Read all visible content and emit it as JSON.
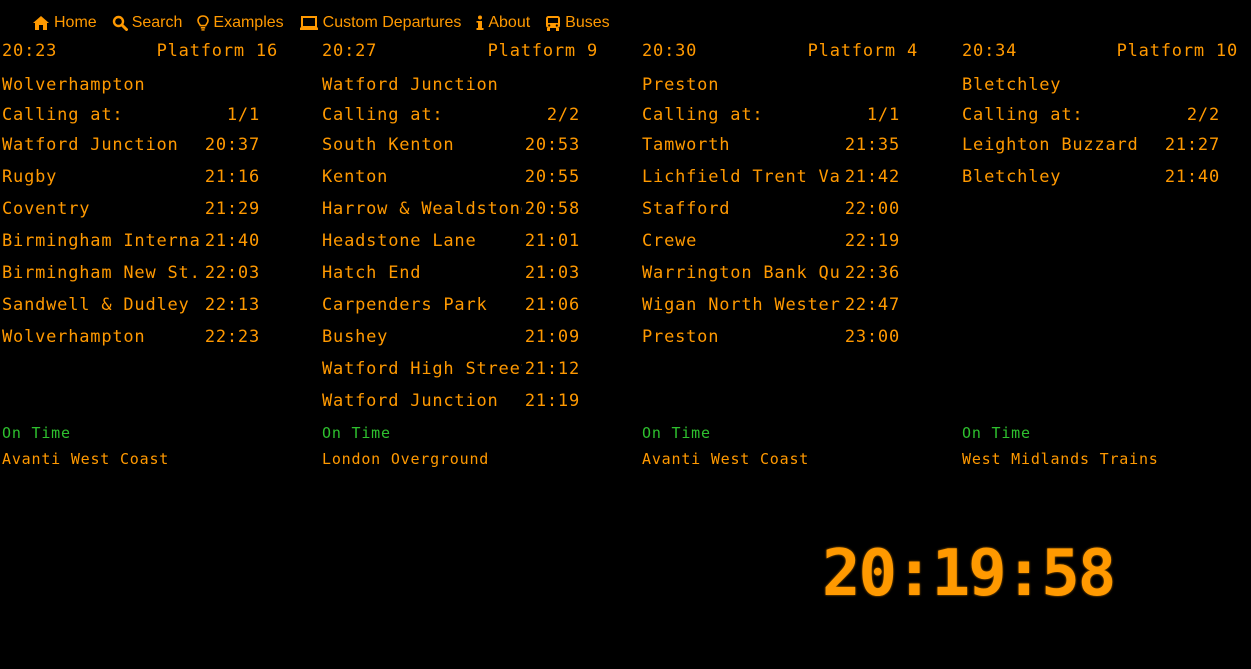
{
  "nav": {
    "items": [
      {
        "label": "Home",
        "icon": "home-icon"
      },
      {
        "label": "Search",
        "icon": "search-icon"
      },
      {
        "label": "Examples",
        "icon": "lightbulb-icon"
      },
      {
        "label": "Custom Departures",
        "icon": "laptop-icon"
      },
      {
        "label": "About",
        "icon": "info-icon"
      },
      {
        "label": "Buses",
        "icon": "bus-icon"
      }
    ]
  },
  "colors": {
    "accent": "#ff9900",
    "on_time": "#2ec02e",
    "background": "#000000"
  },
  "boards": [
    {
      "time": "20:23",
      "platform": "Platform 16",
      "destination": "Wolverhampton",
      "calling_label": "Calling at:",
      "page": "1/1",
      "stops": [
        {
          "name": "Watford Junction",
          "time": "20:37"
        },
        {
          "name": "Rugby",
          "time": "21:16"
        },
        {
          "name": "Coventry",
          "time": "21:29"
        },
        {
          "name": "Birmingham Interna...",
          "time": "21:40"
        },
        {
          "name": "Birmingham New St...",
          "time": "22:03"
        },
        {
          "name": "Sandwell & Dudley",
          "time": "22:13"
        },
        {
          "name": "Wolverhampton",
          "time": "22:23"
        }
      ],
      "status": "On Time",
      "operator": "Avanti West Coast"
    },
    {
      "time": "20:27",
      "platform": "Platform 9",
      "destination": "Watford Junction",
      "calling_label": "Calling at:",
      "page": "2/2",
      "stops": [
        {
          "name": "South Kenton",
          "time": "20:53"
        },
        {
          "name": "Kenton",
          "time": "20:55"
        },
        {
          "name": "Harrow & Wealdstone",
          "time": "20:58"
        },
        {
          "name": "Headstone Lane",
          "time": "21:01"
        },
        {
          "name": "Hatch End",
          "time": "21:03"
        },
        {
          "name": "Carpenders Park",
          "time": "21:06"
        },
        {
          "name": "Bushey",
          "time": "21:09"
        },
        {
          "name": "Watford High Street",
          "time": "21:12"
        },
        {
          "name": "Watford Junction",
          "time": "21:19"
        }
      ],
      "status": "On Time",
      "operator": "London Overground"
    },
    {
      "time": "20:30",
      "platform": "Platform 4",
      "destination": "Preston",
      "calling_label": "Calling at:",
      "page": "1/1",
      "stops": [
        {
          "name": "Tamworth",
          "time": "21:35"
        },
        {
          "name": "Lichfield Trent Va...",
          "time": "21:42"
        },
        {
          "name": "Stafford",
          "time": "22:00"
        },
        {
          "name": "Crewe",
          "time": "22:19"
        },
        {
          "name": "Warrington Bank Qu...",
          "time": "22:36"
        },
        {
          "name": "Wigan North Western",
          "time": "22:47"
        },
        {
          "name": "Preston",
          "time": "23:00"
        }
      ],
      "status": "On Time",
      "operator": "Avanti West Coast"
    },
    {
      "time": "20:34",
      "platform": "Platform 10",
      "destination": "Bletchley",
      "calling_label": "Calling at:",
      "page": "2/2",
      "stops": [
        {
          "name": "Leighton Buzzard",
          "time": "21:27"
        },
        {
          "name": "Bletchley",
          "time": "21:40"
        }
      ],
      "status": "On Time",
      "operator": "West Midlands Trains"
    }
  ],
  "clock": "20:19:58"
}
